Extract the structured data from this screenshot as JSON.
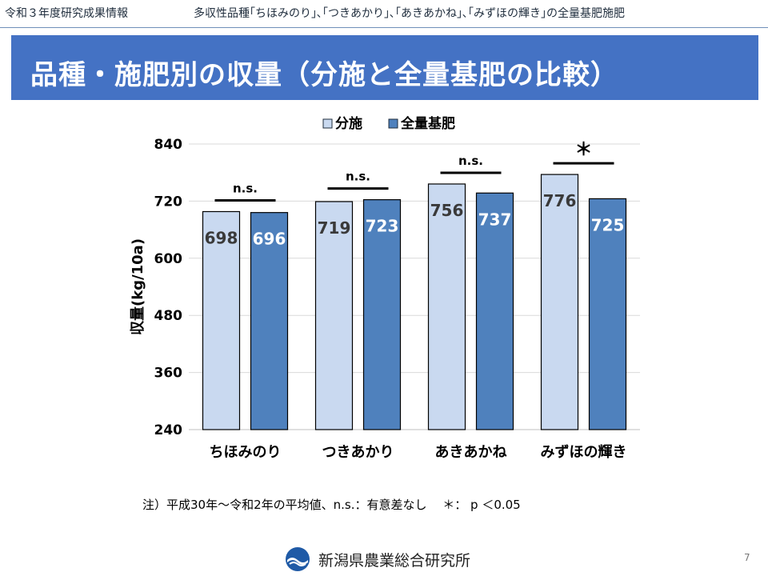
{
  "header": {
    "left": "令和３年度研究成果情報",
    "right": "多収性品種｢ちほみのり｣､｢つきあかり｣､｢あきあかね｣､｢みずほの輝き｣の全量基肥施肥"
  },
  "title": "品種・施肥別の収量（分施と全量基肥の比較）",
  "note": "注）平成30年～令和2年の平均値、n.s.：有意差なし　 ＊： p ＜0.05",
  "footer": {
    "org": "新潟県農業総合研究所",
    "page": "7"
  },
  "colors": {
    "accent": "#4472c4",
    "split_fill": "#c9d9f0",
    "basal_fill": "#4f81bd",
    "grid": "#d9d9d9"
  },
  "chart_data": {
    "type": "bar",
    "ylabel": "収量(kg/10a)",
    "ylim": [
      240,
      840
    ],
    "yticks": [
      240,
      360,
      480,
      600,
      720,
      840
    ],
    "grid": true,
    "legend_position": "top",
    "categories": [
      "ちほみのり",
      "つきあかり",
      "あきあかね",
      "みずほの輝き"
    ],
    "series": [
      {
        "name": "分施",
        "values": [
          698,
          719,
          756,
          776
        ]
      },
      {
        "name": "全量基肥",
        "values": [
          696,
          723,
          737,
          725
        ]
      }
    ],
    "significance": [
      "n.s.",
      "n.s.",
      "n.s.",
      "＊"
    ]
  }
}
